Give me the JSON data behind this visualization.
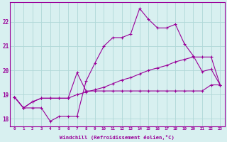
{
  "xlabel": "Windchill (Refroidissement éolien,°C)",
  "bg_color": "#d8f0f0",
  "grid_color": "#b0d8d8",
  "line_color": "#990099",
  "xlim": [
    -0.5,
    23.5
  ],
  "ylim": [
    17.7,
    22.8
  ],
  "yticks": [
    18,
    19,
    20,
    21,
    22
  ],
  "xticks": [
    0,
    1,
    2,
    3,
    4,
    5,
    6,
    7,
    8,
    9,
    10,
    11,
    12,
    13,
    14,
    15,
    16,
    17,
    18,
    19,
    20,
    21,
    22,
    23
  ],
  "series": [
    [
      18.9,
      18.45,
      18.45,
      18.45,
      17.9,
      18.1,
      18.1,
      18.1,
      19.55,
      20.3,
      21.0,
      21.35,
      21.35,
      21.5,
      22.55,
      22.1,
      21.75,
      21.75,
      21.9,
      21.1,
      20.6,
      19.95,
      20.05,
      19.4
    ],
    [
      18.9,
      18.45,
      18.7,
      18.85,
      18.85,
      18.85,
      18.85,
      19.9,
      19.15,
      19.15,
      19.15,
      19.15,
      19.15,
      19.15,
      19.15,
      19.15,
      19.15,
      19.15,
      19.15,
      19.15,
      19.15,
      19.15,
      19.4,
      19.4
    ],
    [
      18.9,
      18.45,
      18.7,
      18.85,
      18.85,
      18.85,
      18.85,
      19.0,
      19.1,
      19.2,
      19.3,
      19.45,
      19.6,
      19.7,
      19.85,
      20.0,
      20.1,
      20.2,
      20.35,
      20.45,
      20.55,
      20.55,
      20.55,
      19.4
    ]
  ]
}
